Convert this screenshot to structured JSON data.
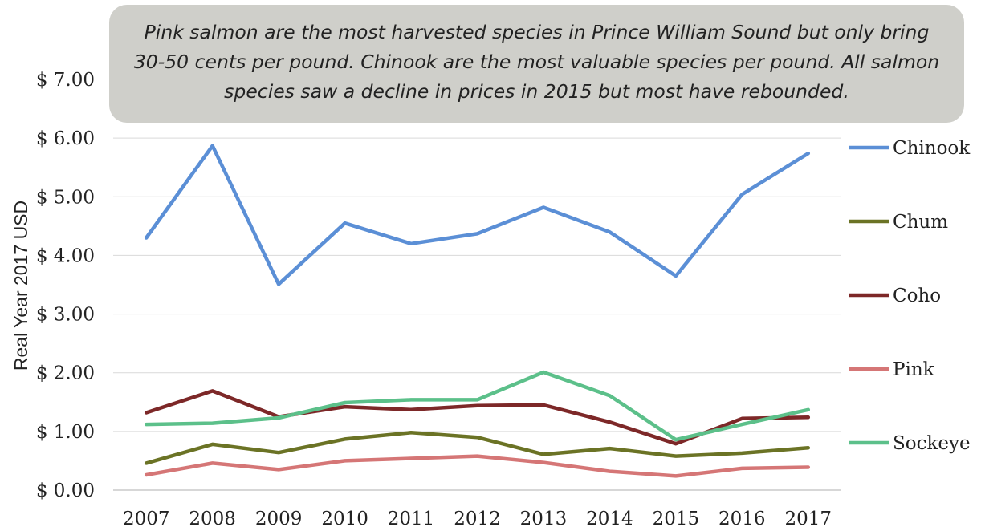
{
  "annotation": "Pink salmon are the most harvested species in Prince William Sound but only bring 30-50 cents per pound. Chinook are the most valuable species per pound. All salmon species saw a decline in prices in 2015 but most have rebounded.",
  "chart_data": {
    "type": "line",
    "title": "",
    "xlabel": "",
    "ylabel": "Real Year 2017 USD",
    "ylim": [
      0,
      7
    ],
    "yticks": [
      "$ 0.00",
      "$ 1.00",
      "$ 2.00",
      "$ 3.00",
      "$ 4.00",
      "$ 5.00",
      "$ 6.00",
      "$ 7.00"
    ],
    "grid": "horizontal",
    "legend": "right",
    "categories": [
      "2007",
      "2008",
      "2009",
      "2010",
      "2011",
      "2012",
      "2013",
      "2014",
      "2015",
      "2016",
      "2017"
    ],
    "series": [
      {
        "name": "Chinook",
        "color": "#5b8fd6",
        "values": [
          4.3,
          5.87,
          3.51,
          4.55,
          4.2,
          4.37,
          4.82,
          4.4,
          3.65,
          5.04,
          5.74
        ]
      },
      {
        "name": "Chum",
        "color": "#6b7325",
        "values": [
          0.46,
          0.78,
          0.64,
          0.87,
          0.98,
          0.9,
          0.61,
          0.71,
          0.58,
          0.63,
          0.72
        ]
      },
      {
        "name": "Coho",
        "color": "#7d2828",
        "values": [
          1.32,
          1.69,
          1.25,
          1.42,
          1.37,
          1.44,
          1.45,
          1.16,
          0.79,
          1.22,
          1.24
        ]
      },
      {
        "name": "Pink",
        "color": "#d57676",
        "values": [
          0.26,
          0.46,
          0.35,
          0.5,
          0.54,
          0.58,
          0.47,
          0.32,
          0.24,
          0.37,
          0.39
        ]
      },
      {
        "name": "Sockeye",
        "color": "#5cc08a",
        "values": [
          1.12,
          1.14,
          1.23,
          1.49,
          1.54,
          1.54,
          2.01,
          1.61,
          0.86,
          1.12,
          1.37
        ]
      }
    ]
  }
}
